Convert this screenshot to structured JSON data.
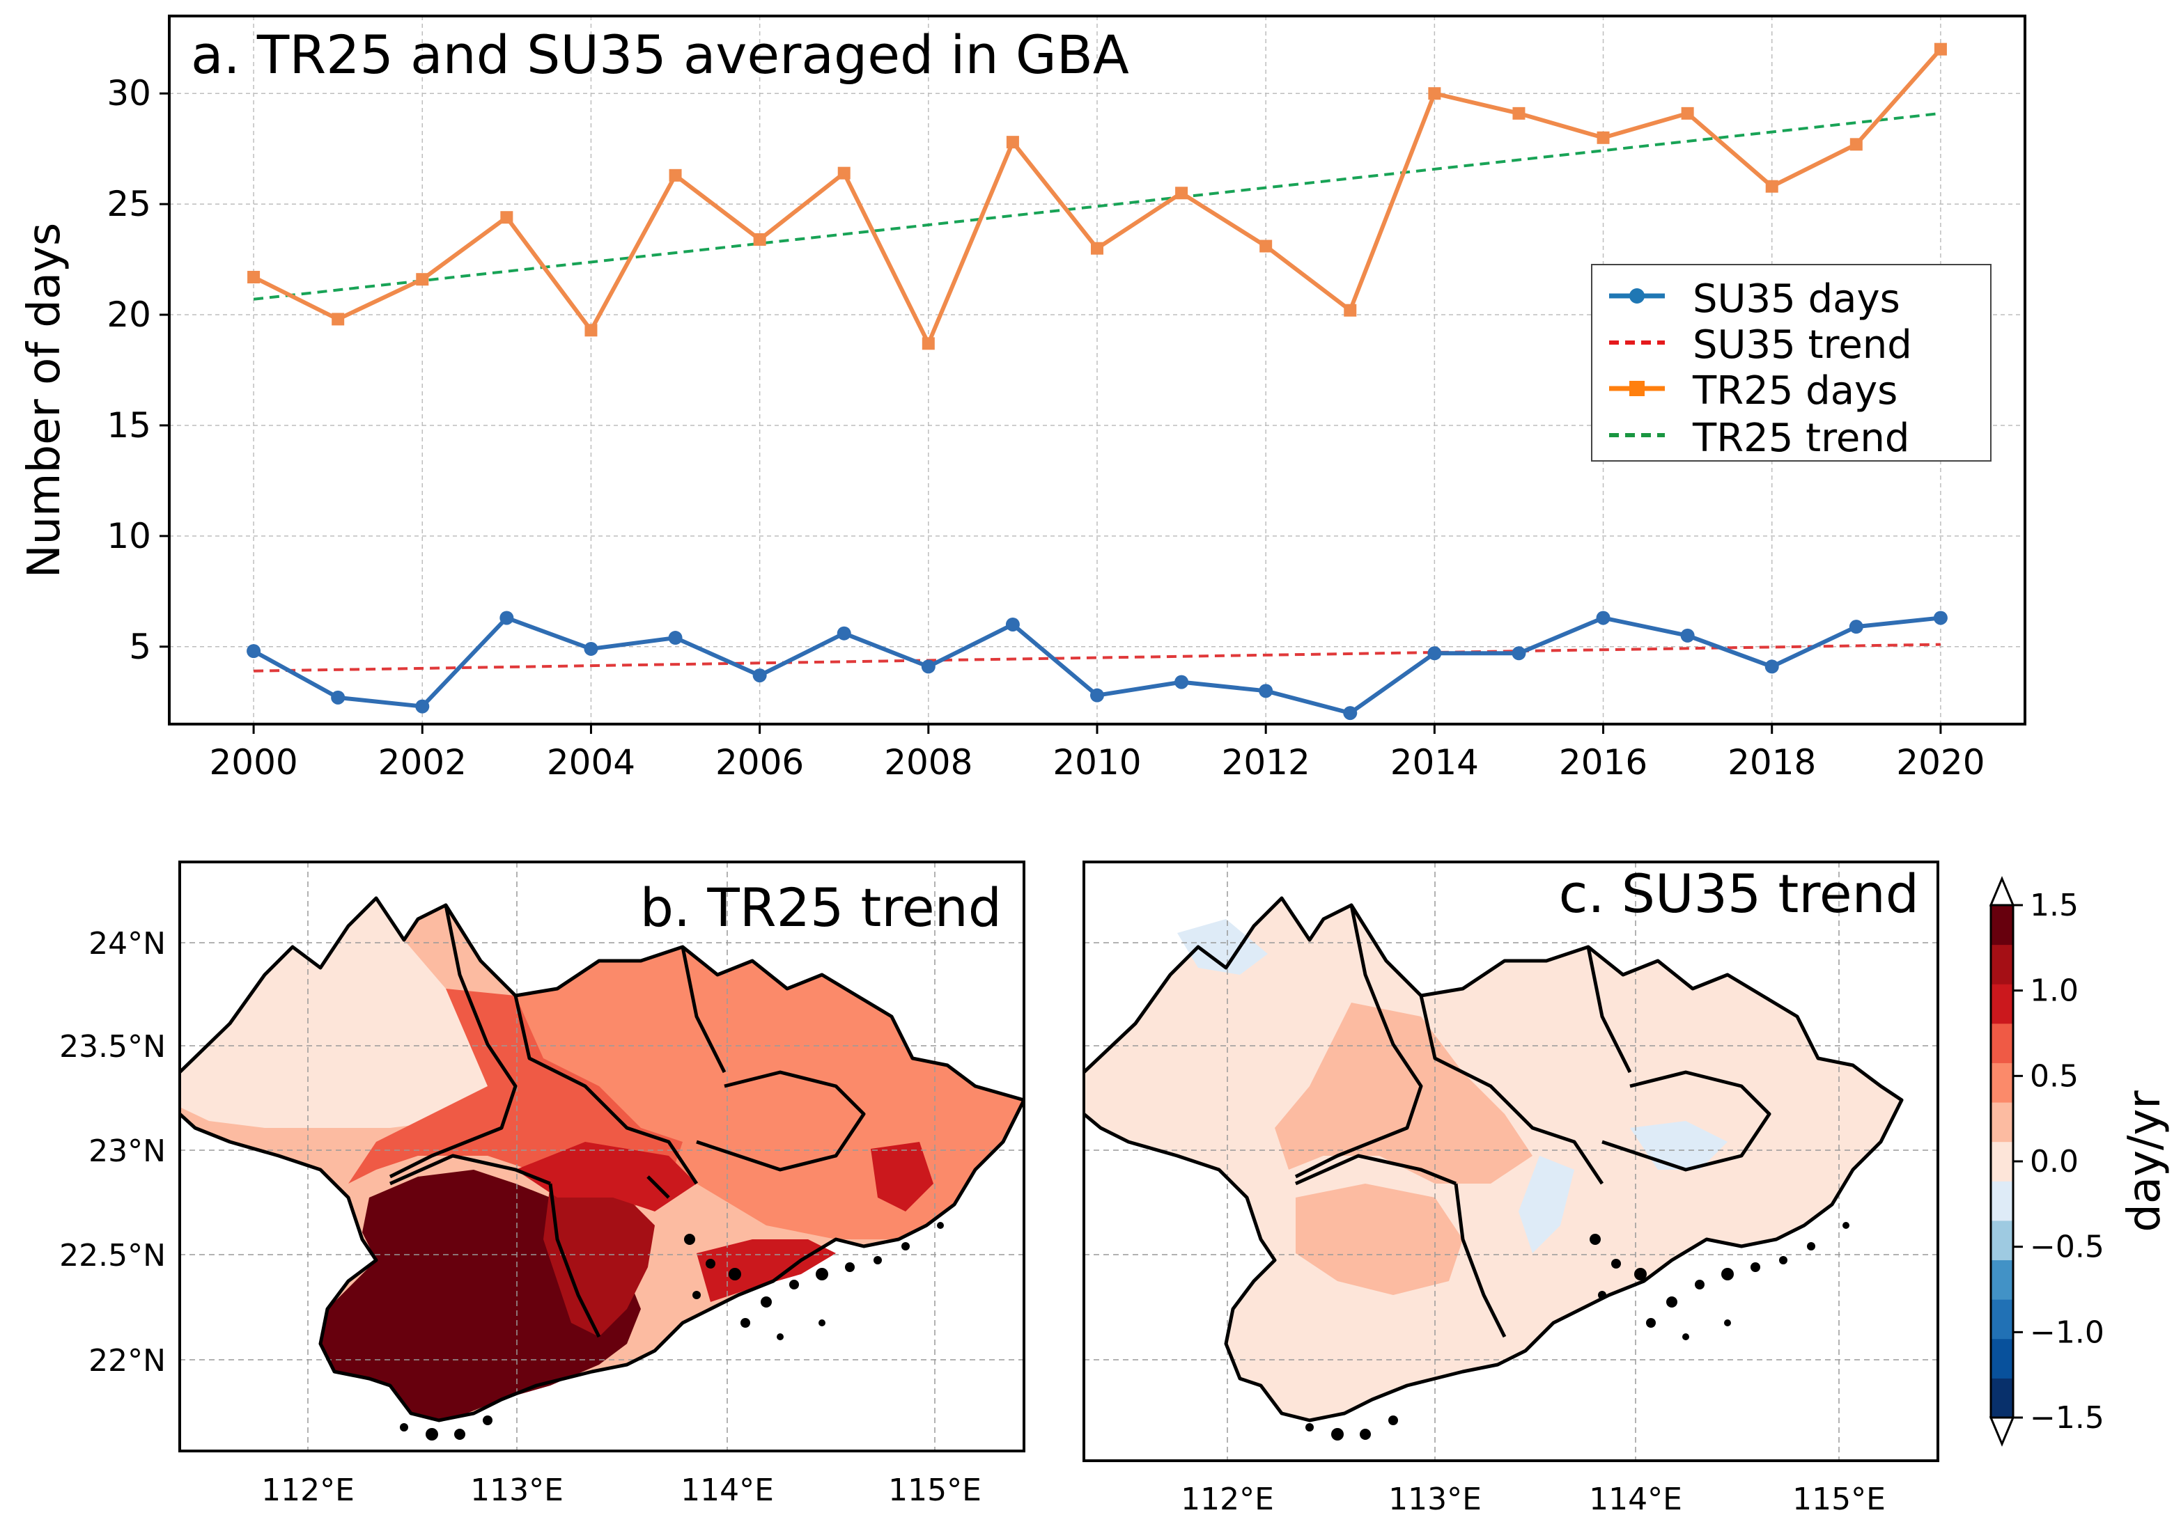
{
  "colors": {
    "su35": "#2f6db3",
    "su35_trend": "#e03030",
    "tr25": "#f08a4b",
    "tr25_trend": "#17a34a",
    "grid": "#bdbdbd",
    "land_outline": "#000000"
  },
  "chart_data": [
    {
      "type": "line",
      "title": "a. TR25 and SU35 averaged in GBA",
      "xlabel": "",
      "ylabel": "Number of days",
      "x": [
        2000,
        2001,
        2002,
        2003,
        2004,
        2005,
        2006,
        2007,
        2008,
        2009,
        2010,
        2011,
        2012,
        2013,
        2014,
        2015,
        2016,
        2017,
        2018,
        2019,
        2020
      ],
      "xlim": [
        1999,
        2021
      ],
      "ylim": [
        1.5,
        33.5
      ],
      "x_ticks": [
        2000,
        2002,
        2004,
        2006,
        2008,
        2010,
        2012,
        2014,
        2016,
        2018,
        2020
      ],
      "x_tick_labels": [
        "2000",
        "2002",
        "2004",
        "2006",
        "2008",
        "2010",
        "2012",
        "2014",
        "2016",
        "2018",
        "2020"
      ],
      "y_ticks": [
        5,
        10,
        15,
        20,
        25,
        30
      ],
      "y_tick_labels": [
        "5",
        "10",
        "15",
        "20",
        "25",
        "30"
      ],
      "grid": true,
      "legend_position": "center-right",
      "series": [
        {
          "name": "SU35 days",
          "style": "line-circle",
          "values": [
            4.8,
            2.7,
            2.3,
            6.3,
            4.9,
            5.4,
            3.7,
            5.6,
            4.1,
            6.0,
            2.8,
            3.4,
            3.0,
            2.0,
            4.7,
            4.7,
            6.3,
            5.5,
            4.1,
            5.9,
            6.3
          ]
        },
        {
          "name": "SU35 trend",
          "style": "dashed",
          "start": 3.9,
          "end": 5.1
        },
        {
          "name": "TR25 days",
          "style": "line-square",
          "values": [
            21.7,
            19.8,
            21.6,
            24.4,
            19.3,
            26.3,
            23.4,
            26.4,
            18.7,
            27.8,
            23.0,
            25.5,
            23.1,
            20.2,
            30.0,
            29.1,
            28.0,
            29.1,
            25.8,
            27.7,
            32.0
          ]
        },
        {
          "name": "TR25 trend",
          "style": "dashed",
          "start": 20.7,
          "end": 29.1
        }
      ]
    },
    {
      "type": "heatmap",
      "title": "b. TR25 trend",
      "x_tick_labels": [
        "112°E",
        "113°E",
        "114°E",
        "115°E"
      ],
      "y_tick_labels": [
        "24°N",
        "23.5°N",
        "23°N",
        "22.5°N",
        "22°N"
      ],
      "lon_range": [
        111.35,
        115.4
      ],
      "lat_range": [
        21.6,
        24.4
      ],
      "values_description_by_region": {
        "west": 0.3,
        "north_center": 0.5,
        "center": 0.9,
        "east": 0.7,
        "southwest": 1.5,
        "south_center": 1.2
      }
    },
    {
      "type": "heatmap",
      "title": "c. SU35 trend",
      "x_tick_labels": [
        "112°E",
        "113°E",
        "114°E",
        "115°E"
      ],
      "lon_range": [
        111.35,
        115.4
      ],
      "lat_range": [
        21.6,
        24.4
      ],
      "values_description_by_region": {
        "west": 0.1,
        "center": 0.3,
        "east": 0.05,
        "southwest": 0.25
      }
    }
  ],
  "colorbar": {
    "label": "day/yr",
    "tick_labels": [
      "1.5",
      "1.0",
      "0.5",
      "0.0",
      "−0.5",
      "−1.0",
      "−1.5"
    ],
    "levels": [
      -1.5,
      -1.25,
      -1.0,
      -0.75,
      -0.5,
      -0.25,
      0.0,
      0.25,
      0.5,
      0.75,
      1.0,
      1.25,
      1.5
    ],
    "colors": [
      "#08306b",
      "#08519c",
      "#2171b5",
      "#4292c6",
      "#9ecae1",
      "#deebf7",
      "#fde5d9",
      "#fcbba1",
      "#fb8a6a",
      "#ef5a45",
      "#cb181d",
      "#a50f15",
      "#67000d"
    ]
  }
}
